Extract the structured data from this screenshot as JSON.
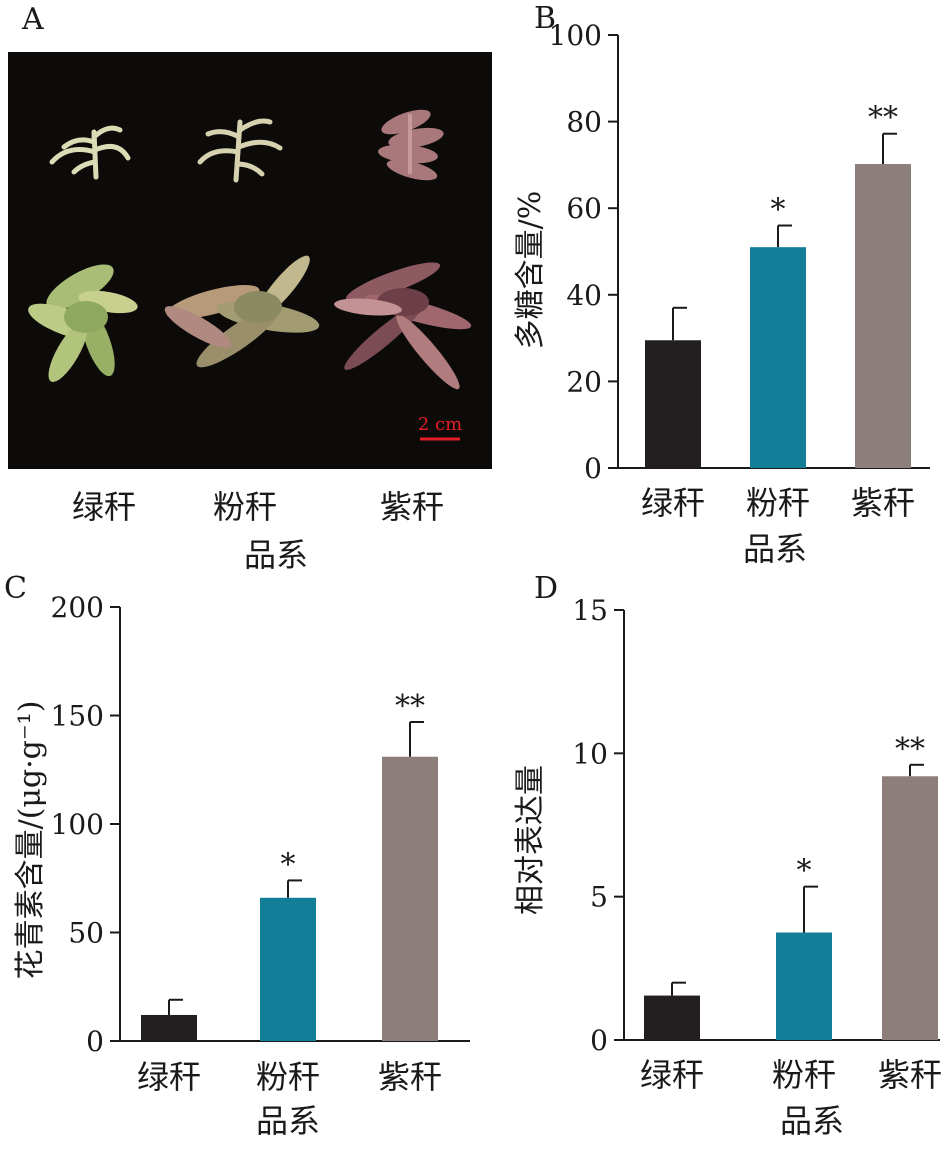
{
  "panels": {
    "A": {
      "letter": "A",
      "scale_bar": "2 cm",
      "categories": [
        "绿秆",
        "粉秆",
        "紫秆"
      ],
      "xlabel": "品系"
    }
  },
  "colors": {
    "green_stem": "#231f20",
    "pink_stem": "#137e98",
    "purple_stem": "#8b7e7b",
    "scale_bar": "#e31e24"
  },
  "chart_data": [
    {
      "panel": "B",
      "type": "bar",
      "categories": [
        "绿秆",
        "粉秆",
        "紫秆"
      ],
      "values": [
        29.5,
        51,
        70.2
      ],
      "errors": [
        7.5,
        5,
        7
      ],
      "significance": [
        "",
        "*",
        "**"
      ],
      "xlabel": "品系",
      "ylabel": "多糖含量/%",
      "ylim": [
        0,
        100
      ],
      "yticks": [
        0,
        20,
        40,
        60,
        80,
        100
      ]
    },
    {
      "panel": "C",
      "type": "bar",
      "categories": [
        "绿秆",
        "粉秆",
        "紫秆"
      ],
      "values": [
        12,
        66,
        131
      ],
      "errors": [
        7,
        8,
        16
      ],
      "significance": [
        "",
        "*",
        "**"
      ],
      "xlabel": "品系",
      "ylabel": "花青素含量/(μg·g⁻¹)",
      "ylim": [
        0,
        200
      ],
      "yticks": [
        0,
        50,
        100,
        150,
        200
      ]
    },
    {
      "panel": "D",
      "type": "bar",
      "categories": [
        "绿秆",
        "粉秆",
        "紫秆"
      ],
      "values": [
        1.55,
        3.75,
        9.2
      ],
      "errors": [
        0.45,
        1.6,
        0.4
      ],
      "significance": [
        "",
        "*",
        "**"
      ],
      "xlabel": "品系",
      "ylabel": "相对表达量",
      "ylim": [
        0,
        15
      ],
      "yticks": [
        0,
        5,
        10,
        15
      ]
    }
  ]
}
